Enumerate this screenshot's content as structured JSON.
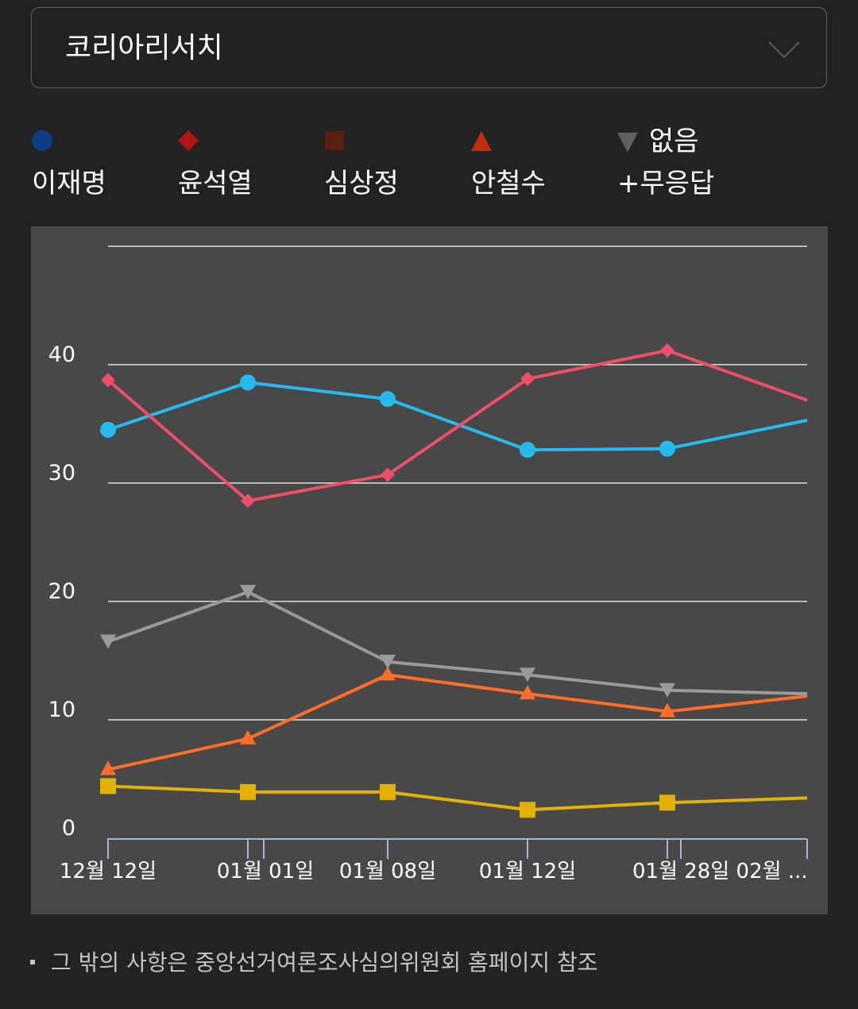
{
  "dropdown": {
    "selected": "코리아리서치"
  },
  "colors": {
    "page_bg": "#222222",
    "chart_bg": "#484848",
    "grid": "#b9b9b9",
    "axis": "#a8b8cc"
  },
  "legend": [
    {
      "label": "이재명",
      "marker": "circle-icon",
      "color": "#0d3d85"
    },
    {
      "label": "윤석열",
      "marker": "diamond-icon",
      "color": "#b01414"
    },
    {
      "label": "심상정",
      "marker": "square-icon",
      "color": "#5c1e10"
    },
    {
      "label": "안철수",
      "marker": "triangle-icon",
      "color": "#c42d0c"
    },
    {
      "label_line1": "없음",
      "label_line2": "+무응답",
      "marker": "triangle-down-icon",
      "color": "#5f5f5f"
    }
  ],
  "chart_data": {
    "type": "line",
    "categories": [
      "12월 12일",
      "01월 01일",
      "01월 08일",
      "01월 12일",
      "01월 28일",
      "02월 ..."
    ],
    "x_tick_labels": [
      "12월 12일",
      "01월 01일",
      "01월 08일",
      "01월 12일",
      "01월 28일 02월 ..."
    ],
    "y_ticks": [
      0,
      10,
      20,
      30,
      40
    ],
    "ylim": [
      0,
      50
    ],
    "grid": true,
    "series": [
      {
        "name": "이재명",
        "color": "#27baef",
        "marker": "circle",
        "values": [
          34.5,
          38.5,
          37.1,
          32.8,
          32.9,
          35.3
        ]
      },
      {
        "name": "윤석열",
        "color": "#ef4f66",
        "marker": "diamond",
        "values": [
          38.7,
          28.5,
          30.7,
          38.8,
          41.2,
          37.0
        ]
      },
      {
        "name": "심상정",
        "color": "#e2b106",
        "marker": "square",
        "values": [
          4.4,
          3.9,
          3.9,
          2.4,
          3.0,
          3.4
        ]
      },
      {
        "name": "안철수",
        "color": "#ff6d2a",
        "marker": "triangle",
        "values": [
          5.8,
          8.4,
          13.8,
          12.2,
          10.7,
          12.0
        ]
      },
      {
        "name": "없음+무응답",
        "color": "#9a9a9a",
        "marker": "triangle-down",
        "values": [
          16.6,
          20.8,
          14.9,
          13.8,
          12.5,
          12.2
        ]
      }
    ]
  },
  "footnote": "그 밖의 사항은 중앙선거여론조사심의위원회 홈페이지 참조"
}
